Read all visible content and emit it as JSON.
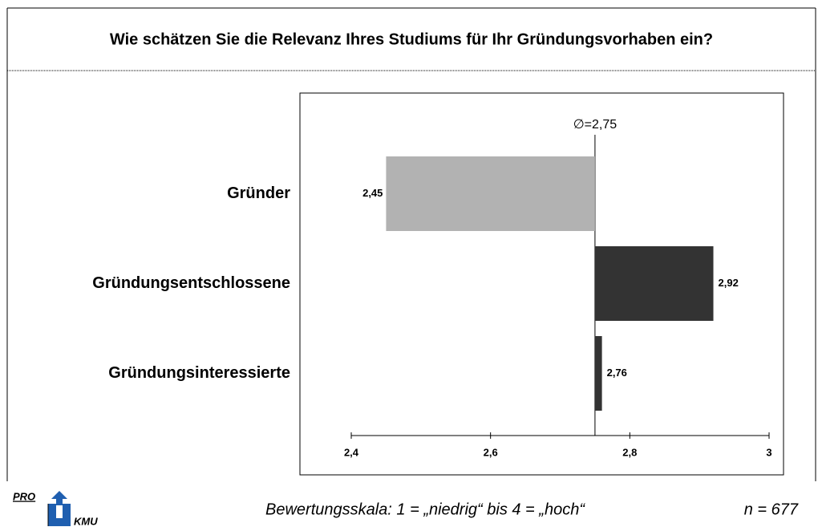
{
  "chart_data": {
    "type": "bar",
    "orientation": "horizontal",
    "title": "Wie schätzen Sie die Relevanz Ihres Studiums für Ihr Gründungsvorhaben ein?",
    "categories": [
      "Gründer",
      "Gründungsentschlossene",
      "Gründungsinteressierte"
    ],
    "values": [
      2.45,
      2.92,
      2.76
    ],
    "value_labels": [
      "2,45",
      "2,92",
      "2,76"
    ],
    "colors": [
      "#b2b2b2",
      "#333333",
      "#333333"
    ],
    "baseline": {
      "value": 2.75,
      "label": "∅=2,75"
    },
    "xlim": [
      2.4,
      3
    ],
    "xticks": [
      {
        "value": 2.4,
        "label": "2,4"
      },
      {
        "value": 2.6,
        "label": "2,6"
      },
      {
        "value": 2.8,
        "label": "2,8"
      },
      3
    ],
    "footnote": "Bewertungsskala: 1 = „niedrig“ bis 4 = „hoch“",
    "sample": "n = 677"
  },
  "logo": {
    "top": "PRO",
    "bottom": "KMU"
  }
}
